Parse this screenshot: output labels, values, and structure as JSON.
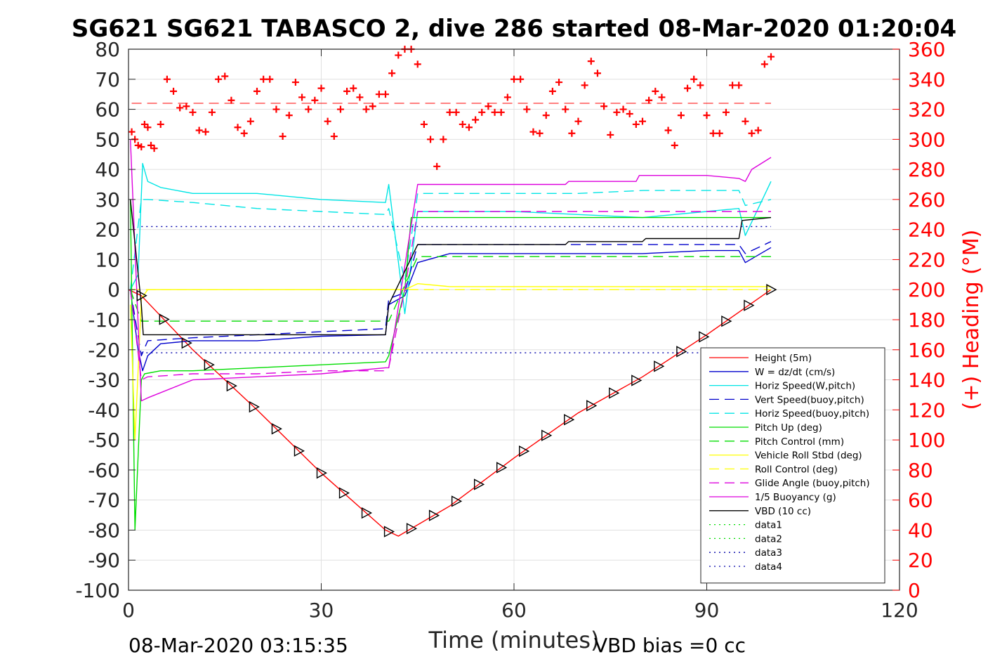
{
  "chart_data": {
    "type": "line",
    "title": "SG621 SG621 TABASCO 2, dive 286 started 08-Mar-2020 01:20:04",
    "xlabel": "Time (minutes)",
    "ylabel_right": "(+) Heading (°M)",
    "xlim": [
      0,
      120
    ],
    "ylim": [
      -100,
      80
    ],
    "ylim_right": [
      0,
      360
    ],
    "x_ticks": [
      0,
      30,
      60,
      90,
      120
    ],
    "y_ticks": [
      80,
      70,
      60,
      50,
      40,
      30,
      20,
      10,
      0,
      -10,
      -20,
      -30,
      -40,
      -50,
      -60,
      -70,
      -80,
      -90,
      -100
    ],
    "y_right_ticks": [
      360,
      340,
      320,
      300,
      280,
      260,
      240,
      220,
      200,
      180,
      160,
      140,
      120,
      100,
      80,
      60,
      40,
      20,
      0
    ],
    "grid": true,
    "legend_position": "bottom-right",
    "footer_left": "08-Mar-2020 03:15:35",
    "footer_right": "VBD bias =0 cc",
    "series": [
      {
        "name": "Height (5m)",
        "color": "#ff0000",
        "style": "solid",
        "x": [
          0,
          2,
          10,
          20,
          30,
          40,
          42,
          50,
          60,
          70,
          80,
          90,
          100
        ],
        "y": [
          0,
          -2,
          -20,
          -40,
          -61,
          -80,
          -82,
          -72,
          -56,
          -41,
          -29,
          -15,
          0
        ]
      },
      {
        "name": "W = dz/dt (cm/s)",
        "color": "#0000cc",
        "style": "solid",
        "x": [
          0.3,
          1.5,
          2.2,
          3,
          5,
          10,
          20,
          30,
          40,
          40.5,
          43,
          45,
          50,
          60,
          70,
          80,
          90,
          95,
          96,
          100
        ],
        "y": [
          0,
          -20,
          -27,
          -22,
          -18,
          -17,
          -17,
          -15.5,
          -15,
          -5,
          -2,
          9,
          12,
          12,
          12,
          12,
          13,
          13,
          9,
          14
        ]
      },
      {
        "name": "Horiz Speed(W,pitch)",
        "color": "#00e5e5",
        "style": "solid",
        "x": [
          0.3,
          1.5,
          2.2,
          3,
          5,
          10,
          20,
          30,
          40,
          40.5,
          43,
          45,
          50,
          60,
          70,
          80,
          90,
          95,
          96,
          100
        ],
        "y": [
          0,
          5,
          42,
          36,
          34,
          32,
          32,
          30,
          29,
          35,
          -8,
          26,
          26,
          26,
          25,
          24,
          26,
          27,
          18,
          36
        ]
      },
      {
        "name": "Vert Speed(buoy,pitch)",
        "color": "#0000cc",
        "style": "dashed",
        "x": [
          0.3,
          2,
          3,
          10,
          20,
          30,
          40,
          40.5,
          43,
          45,
          50,
          60,
          70,
          80,
          90,
          95,
          96,
          100
        ],
        "y": [
          0,
          -22,
          -17,
          -16,
          -15,
          -14,
          -13,
          -3,
          -1,
          15,
          15,
          15,
          15,
          15,
          15,
          15,
          12,
          16
        ]
      },
      {
        "name": "Horiz Speed(buoy,pitch)",
        "color": "#00e5e5",
        "style": "dashed",
        "x": [
          0.3,
          2,
          3,
          10,
          20,
          30,
          40,
          40.5,
          43,
          45,
          50,
          60,
          70,
          80,
          90,
          95,
          96,
          100
        ],
        "y": [
          0,
          30,
          30,
          29,
          27,
          26,
          25,
          27,
          3,
          32,
          32,
          32,
          32,
          33,
          33,
          33,
          28,
          30
        ]
      },
      {
        "name": "Pitch Up (deg)",
        "color": "#00dd00",
        "style": "solid",
        "x": [
          0.3,
          1,
          2,
          2.5,
          5,
          10,
          20,
          30,
          40,
          40.5,
          43,
          44,
          50,
          60,
          70,
          80,
          90,
          100
        ],
        "y": [
          30,
          -80,
          -30,
          -28,
          -27,
          -27,
          -26,
          -25,
          -24,
          -22,
          0,
          24,
          24,
          24,
          24,
          24,
          24,
          24
        ]
      },
      {
        "name": "Pitch Control (mm)",
        "color": "#00dd00",
        "style": "dashed",
        "x": [
          0.3,
          2,
          40,
          40.5,
          45,
          100
        ],
        "y": [
          0,
          -10.5,
          -10.5,
          -10.5,
          11,
          11
        ]
      },
      {
        "name": "Vehicle Roll Stbd (deg)",
        "color": "#ffff00",
        "style": "solid",
        "x": [
          0.3,
          1,
          2,
          3,
          10,
          20,
          30,
          40,
          43,
          45,
          50,
          60,
          70,
          80,
          90,
          100
        ],
        "y": [
          -5,
          -50,
          -3,
          0,
          0,
          0,
          0,
          0,
          0,
          2,
          1,
          1,
          1,
          1,
          1,
          1
        ]
      },
      {
        "name": "Roll Control (deg)",
        "color": "#ffff00",
        "style": "dashed",
        "x": [
          0.3,
          2,
          40,
          45,
          100
        ],
        "y": [
          0,
          0,
          0,
          0,
          0
        ]
      },
      {
        "name": "Glide Angle (buoy,pitch)",
        "color": "#dd00dd",
        "style": "dashed",
        "x": [
          0.3,
          2,
          3,
          10,
          20,
          30,
          40,
          40.5,
          43,
          45,
          50,
          60,
          70,
          80,
          90,
          100
        ],
        "y": [
          0,
          -30,
          -29,
          -28,
          -28,
          -27,
          -27,
          -26,
          0,
          26,
          26,
          26,
          26,
          26,
          26,
          26
        ]
      },
      {
        "name": "1/5 Buoyancy (g)",
        "color": "#dd00dd",
        "style": "solid",
        "x": [
          0.3,
          2,
          3,
          10,
          20,
          30,
          40,
          40.5,
          45,
          50,
          60,
          68,
          68.5,
          79,
          79.5,
          90,
          95,
          96,
          97,
          100
        ],
        "y": [
          50,
          -37,
          -36,
          -30,
          -29,
          -28,
          -26,
          -26,
          35,
          35,
          35,
          35,
          36,
          36,
          38,
          38,
          37,
          36,
          40,
          44
        ]
      },
      {
        "name": "VBD (10 cc)",
        "color": "#000000",
        "style": "solid",
        "x": [
          0.3,
          2,
          2.3,
          40,
          40.5,
          45,
          68,
          68.5,
          80,
          80.5,
          95,
          95.5,
          100
        ],
        "y": [
          30,
          -5,
          -15,
          -15,
          -5,
          15,
          15,
          16,
          16,
          17,
          17,
          23,
          24
        ]
      },
      {
        "name": "data1",
        "color": "#00dd00",
        "style": "dotted",
        "x": [],
        "y": []
      },
      {
        "name": "data2",
        "color": "#00dd00",
        "style": "dotted",
        "x": [],
        "y": []
      },
      {
        "name": "data3",
        "color": "#0000aa",
        "style": "dotted",
        "x": [
          2,
          100
        ],
        "y": [
          21,
          21
        ]
      },
      {
        "name": "data4",
        "color": "#0000aa",
        "style": "dotted",
        "x": [
          2,
          100
        ],
        "y": [
          -21,
          -21
        ]
      }
    ],
    "heading_series": {
      "color": "#ff0000",
      "marker": "+",
      "axis": "right",
      "mean": 324,
      "x": [
        0.5,
        1,
        1.5,
        2,
        2.5,
        3,
        3.5,
        4,
        5,
        6,
        7,
        8,
        9,
        10,
        11,
        12,
        13,
        14,
        15,
        16,
        17,
        18,
        19,
        20,
        21,
        22,
        23,
        24,
        25,
        26,
        27,
        28,
        29,
        30,
        31,
        32,
        33,
        34,
        35,
        36,
        37,
        38,
        39,
        40,
        41,
        42,
        43,
        44,
        45,
        46,
        47,
        48,
        49,
        50,
        51,
        52,
        53,
        54,
        55,
        56,
        57,
        58,
        59,
        60,
        61,
        62,
        63,
        64,
        65,
        66,
        67,
        68,
        69,
        70,
        71,
        72,
        73,
        74,
        75,
        76,
        77,
        78,
        79,
        80,
        81,
        82,
        83,
        84,
        85,
        86,
        87,
        88,
        89,
        90,
        91,
        92,
        93,
        94,
        95,
        96,
        97,
        98,
        99,
        100
      ],
      "y": [
        305,
        300,
        296,
        295,
        310,
        308,
        296,
        294,
        310,
        340,
        332,
        321,
        322,
        318,
        306,
        305,
        318,
        340,
        342,
        326,
        308,
        304,
        312,
        332,
        340,
        340,
        320,
        302,
        316,
        338,
        328,
        320,
        326,
        334,
        312,
        302,
        320,
        332,
        334,
        328,
        320,
        322,
        330,
        330,
        344,
        356,
        360,
        360,
        350,
        310,
        300,
        282,
        300,
        318,
        318,
        310,
        308,
        313,
        318,
        322,
        318,
        318,
        328,
        340,
        340,
        320,
        305,
        304,
        316,
        332,
        338,
        320,
        304,
        312,
        336,
        352,
        344,
        322,
        303,
        318,
        320,
        317,
        310,
        312,
        326,
        332,
        328,
        306,
        296,
        316,
        334,
        340,
        336,
        316,
        304,
        304,
        318,
        336,
        336,
        312,
        304,
        306,
        350,
        355
      ]
    }
  }
}
